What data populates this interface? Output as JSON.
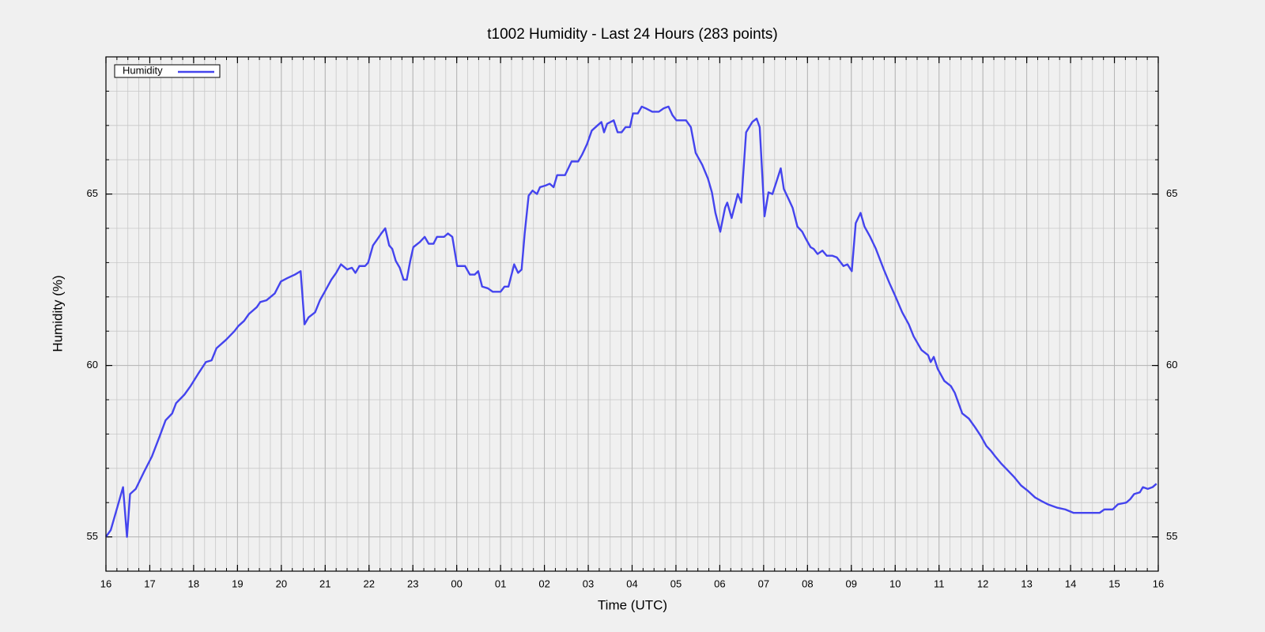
{
  "chart_data": {
    "type": "line",
    "title": "t1002 Humidity - Last 24 Hours (283 points)",
    "xlabel": "Time (UTC)",
    "ylabel": "Humidity (%)",
    "xlim": [
      16,
      40
    ],
    "ylim": [
      54,
      69
    ],
    "xticks": [
      16,
      17,
      18,
      19,
      20,
      21,
      22,
      23,
      {
        "value": 24,
        "label": "00"
      },
      {
        "value": 25,
        "label": "01"
      },
      {
        "value": 26,
        "label": "02"
      },
      {
        "value": 27,
        "label": "03"
      },
      {
        "value": 28,
        "label": "04"
      },
      {
        "value": 29,
        "label": "05"
      },
      {
        "value": 30,
        "label": "06"
      },
      {
        "value": 31,
        "label": "07"
      },
      {
        "value": 32,
        "label": "08"
      },
      {
        "value": 33,
        "label": "09"
      },
      {
        "value": 34,
        "label": "10"
      },
      {
        "value": 35,
        "label": "11"
      },
      {
        "value": 36,
        "label": "12"
      },
      {
        "value": 37,
        "label": "13"
      },
      {
        "value": 38,
        "label": "14"
      },
      {
        "value": 39,
        "label": "15"
      },
      {
        "value": 40,
        "label": "16"
      }
    ],
    "yticks": [
      55,
      60,
      65
    ],
    "grid": true,
    "minor_grid": {
      "x": 0.25,
      "y": 1
    },
    "legend": "upper left",
    "x": [
      16.0,
      16.11,
      16.29,
      16.39,
      16.48,
      16.55,
      16.68,
      16.87,
      17.05,
      17.23,
      17.36,
      17.51,
      17.6,
      17.79,
      17.93,
      18.1,
      18.28,
      18.41,
      18.52,
      18.74,
      18.93,
      19.02,
      19.15,
      19.26,
      19.44,
      19.52,
      19.66,
      19.85,
      19.99,
      20.14,
      20.31,
      20.44,
      20.53,
      20.62,
      20.77,
      20.88,
      20.99,
      21.14,
      21.25,
      21.36,
      21.5,
      21.61,
      21.69,
      21.78,
      21.91,
      21.98,
      22.09,
      22.2,
      22.28,
      22.37,
      22.46,
      22.53,
      22.61,
      22.7,
      22.79,
      22.86,
      22.94,
      23.01,
      23.16,
      23.27,
      23.36,
      23.47,
      23.55,
      23.71,
      23.8,
      23.9,
      24.01,
      24.19,
      24.3,
      24.41,
      24.49,
      24.58,
      24.71,
      24.82,
      25.0,
      25.09,
      25.18,
      25.31,
      25.4,
      25.48,
      25.55,
      25.64,
      25.73,
      25.83,
      25.9,
      26.03,
      26.12,
      26.21,
      26.29,
      26.47,
      26.62,
      26.77,
      26.86,
      26.97,
      27.08,
      27.21,
      27.3,
      27.36,
      27.43,
      27.58,
      27.67,
      27.76,
      27.85,
      27.95,
      28.02,
      28.13,
      28.22,
      28.31,
      28.46,
      28.61,
      28.72,
      28.83,
      28.92,
      29.01,
      29.23,
      29.34,
      29.45,
      29.6,
      29.73,
      29.82,
      29.9,
      30.01,
      30.12,
      30.17,
      30.27,
      30.41,
      30.49,
      30.6,
      30.74,
      30.84,
      30.91,
      31.02,
      31.11,
      31.2,
      31.29,
      31.39,
      31.46,
      31.57,
      31.66,
      31.77,
      31.88,
      31.96,
      32.07,
      32.14,
      32.23,
      32.34,
      32.44,
      32.57,
      32.67,
      32.82,
      32.91,
      33.01,
      33.1,
      33.21,
      33.3,
      33.43,
      33.56,
      33.74,
      33.87,
      34.01,
      34.16,
      34.31,
      34.42,
      34.6,
      34.75,
      34.81,
      34.88,
      34.97,
      35.12,
      35.27,
      35.36,
      35.53,
      35.68,
      35.82,
      35.95,
      36.08,
      36.19,
      36.28,
      36.41,
      36.56,
      36.71,
      36.87,
      37.02,
      37.19,
      37.33,
      37.48,
      37.7,
      37.88,
      38.07,
      38.35,
      38.66,
      38.77,
      38.96,
      39.08,
      39.27,
      39.36,
      39.45,
      39.58,
      39.65,
      39.76,
      39.87,
      39.96
    ],
    "series": [
      {
        "name": "Humidity",
        "color": "#4444ee",
        "values": [
          55.0,
          55.2,
          56.0,
          56.45,
          55.0,
          56.25,
          56.4,
          56.9,
          57.35,
          57.95,
          58.4,
          58.6,
          58.9,
          59.15,
          59.4,
          59.75,
          60.1,
          60.15,
          60.5,
          60.75,
          61.0,
          61.15,
          61.3,
          61.5,
          61.7,
          61.85,
          61.9,
          62.1,
          62.45,
          62.55,
          62.65,
          62.75,
          61.2,
          61.4,
          61.55,
          61.9,
          62.15,
          62.5,
          62.7,
          62.95,
          62.8,
          62.85,
          62.7,
          62.9,
          62.9,
          63.0,
          63.5,
          63.7,
          63.85,
          64.0,
          63.5,
          63.4,
          63.05,
          62.85,
          62.5,
          62.5,
          63.05,
          63.45,
          63.6,
          63.75,
          63.55,
          63.55,
          63.75,
          63.75,
          63.85,
          63.75,
          62.9,
          62.9,
          62.65,
          62.65,
          62.75,
          62.3,
          62.25,
          62.15,
          62.15,
          62.3,
          62.3,
          62.95,
          62.7,
          62.8,
          63.85,
          64.95,
          65.1,
          65.0,
          65.2,
          65.25,
          65.3,
          65.2,
          65.55,
          65.55,
          65.95,
          65.95,
          66.15,
          66.45,
          66.85,
          67.0,
          67.1,
          66.8,
          67.05,
          67.15,
          66.8,
          66.8,
          66.95,
          66.95,
          67.35,
          67.35,
          67.55,
          67.5,
          67.4,
          67.4,
          67.5,
          67.55,
          67.3,
          67.15,
          67.15,
          66.95,
          66.2,
          65.85,
          65.45,
          65.05,
          64.45,
          63.9,
          64.6,
          64.75,
          64.3,
          65.0,
          64.75,
          66.8,
          67.1,
          67.2,
          66.95,
          64.35,
          65.05,
          65.0,
          65.35,
          65.75,
          65.15,
          64.85,
          64.6,
          64.05,
          63.9,
          63.7,
          63.45,
          63.4,
          63.25,
          63.35,
          63.2,
          63.2,
          63.15,
          62.9,
          62.95,
          62.75,
          64.15,
          64.45,
          64.05,
          63.75,
          63.4,
          62.8,
          62.4,
          62.0,
          61.55,
          61.2,
          60.85,
          60.45,
          60.3,
          60.1,
          60.25,
          59.9,
          59.55,
          59.4,
          59.2,
          58.6,
          58.45,
          58.2,
          57.95,
          57.65,
          57.5,
          57.35,
          57.15,
          56.95,
          56.75,
          56.5,
          56.35,
          56.15,
          56.05,
          55.95,
          55.85,
          55.8,
          55.7,
          55.7,
          55.7,
          55.8,
          55.8,
          55.95,
          56.0,
          56.1,
          56.25,
          56.3,
          56.45,
          56.4,
          56.45,
          56.55
        ]
      }
    ]
  }
}
